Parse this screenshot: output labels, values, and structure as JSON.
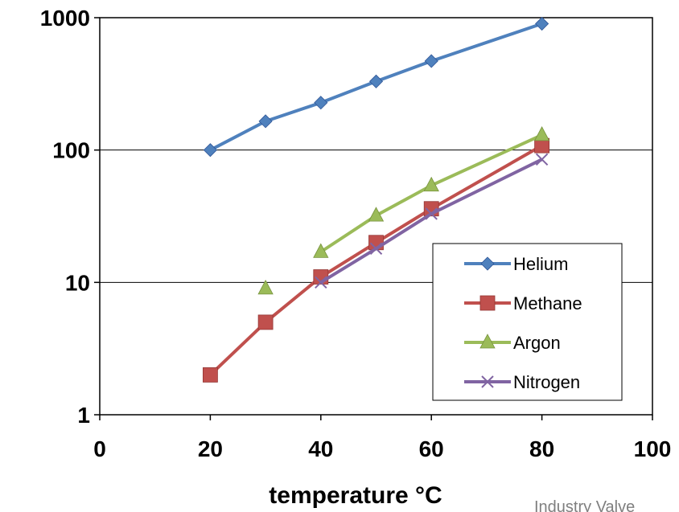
{
  "chart_data": {
    "type": "line",
    "title": "",
    "xlabel": "temperature °C",
    "ylabel": "",
    "xlim": [
      0,
      100
    ],
    "ylim": [
      1,
      1000
    ],
    "yscale": "log",
    "x_ticks": [
      "0",
      "20",
      "40",
      "60",
      "80",
      "100"
    ],
    "y_ticks": [
      "1",
      "10",
      "100",
      "1000"
    ],
    "grid": "horizontal major lines",
    "legend_position": "bottom-right",
    "series": [
      {
        "name": "Helium",
        "color": "#4F81BD",
        "marker": "diamond",
        "x": [
          20,
          30,
          40,
          50,
          60,
          80
        ],
        "y": [
          100,
          165,
          228,
          330,
          470,
          900
        ]
      },
      {
        "name": "Methane",
        "color": "#C0504D",
        "marker": "square",
        "x": [
          20,
          30,
          40,
          50,
          60,
          80
        ],
        "y": [
          2,
          5,
          11,
          20,
          36,
          108
        ]
      },
      {
        "name": "Argon",
        "color": "#9BBB59",
        "marker": "triangle",
        "x": [
          30,
          40,
          50,
          60,
          80
        ],
        "y": [
          9,
          17,
          32,
          54,
          130
        ],
        "connect_from": 1
      },
      {
        "name": "Nitrogen",
        "color": "#8064A2",
        "marker": "x",
        "x": [
          40,
          50,
          60,
          80
        ],
        "y": [
          10,
          18,
          33,
          85
        ]
      }
    ]
  },
  "watermark": "Industry Valve"
}
